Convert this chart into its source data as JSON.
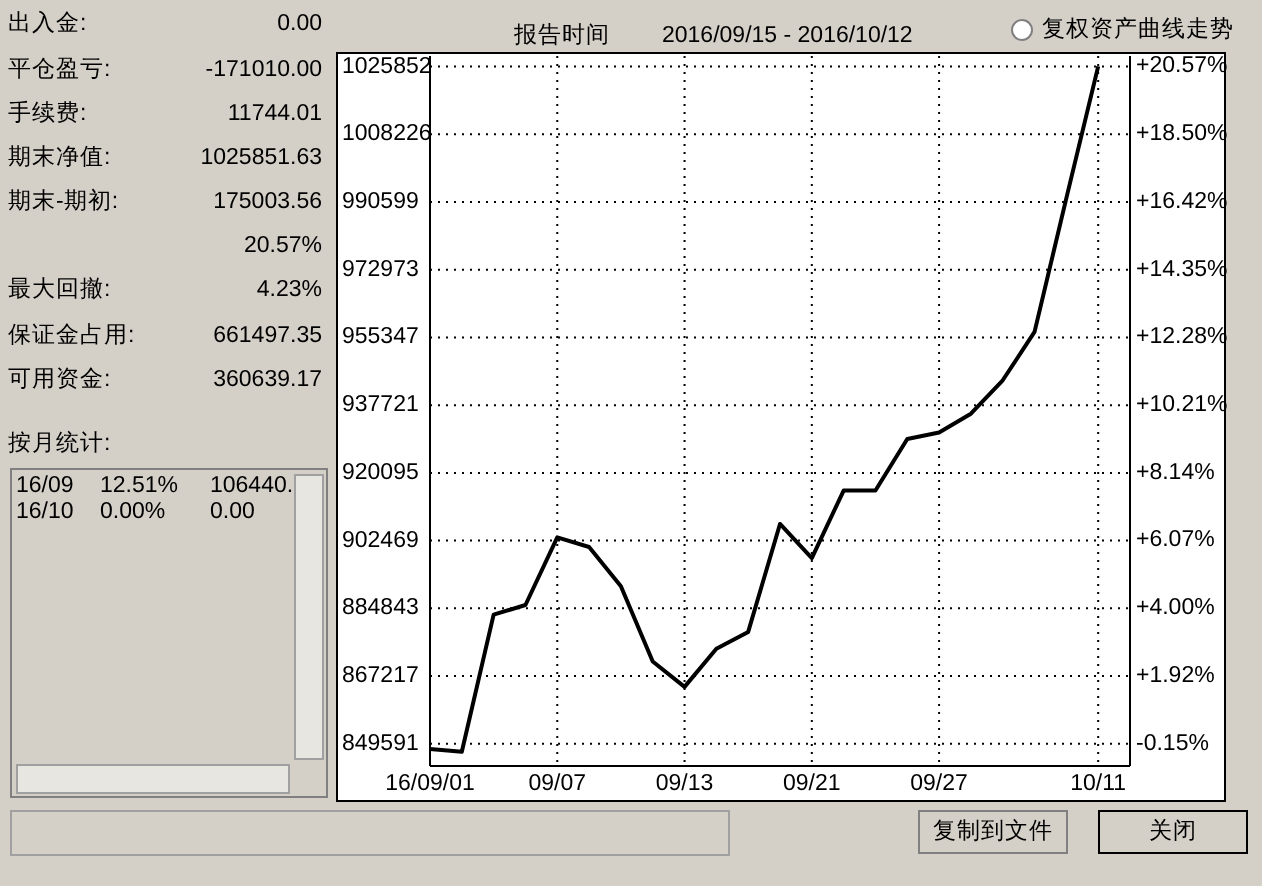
{
  "chart_data": {
    "type": "line",
    "categories": [
      "16/09/01",
      null,
      null,
      null,
      "09/07",
      null,
      null,
      null,
      "09/13",
      null,
      null,
      null,
      "09/21",
      null,
      null,
      null,
      "09/27",
      null,
      null,
      null,
      null,
      "10/11"
    ],
    "series": [
      {
        "color": "#000000",
        "values": [
          848200,
          847500,
          883200,
          885700,
          903300,
          900800,
          890600,
          871000,
          864400,
          874300,
          878700,
          906800,
          897900,
          915500,
          915500,
          928900,
          930600,
          935500,
          944200,
          956800,
          991600,
          1025900
        ]
      }
    ],
    "ylim": [
      843800,
      1028600
    ],
    "yticks": [
      849591,
      867217,
      884843,
      902469,
      920095,
      937721,
      955347,
      972973,
      990599,
      1008226,
      1025852
    ],
    "y2lim": [
      -0.83,
      20.89
    ],
    "y2ticks": [
      {
        "value": 20.57,
        "label": "+20.57%"
      },
      {
        "value": 18.5,
        "label": "+18.50%"
      },
      {
        "value": 16.42,
        "label": "+16.42%"
      },
      {
        "value": 14.35,
        "label": "+14.35%"
      },
      {
        "value": 12.28,
        "label": "+12.28%"
      },
      {
        "value": 10.21,
        "label": "+10.21%"
      },
      {
        "value": 8.14,
        "label": "+8.14%"
      },
      {
        "value": 6.07,
        "label": "+6.07%"
      },
      {
        "value": 4.0,
        "label": "+4.00%"
      },
      {
        "value": 1.92,
        "label": "+1.92%"
      },
      {
        "value": -0.15,
        "label": "-0.15%"
      }
    ],
    "grid": true,
    "annotations": [
      "出入金:",
      "0.00",
      "平仓盈亏:",
      "-171010.00",
      "手续费:",
      "11744.01",
      "期末净值:",
      "1025851.63",
      "期末-期初:",
      "175003.56",
      "20.57%",
      "最大回撤:",
      "4.23%",
      "保证金占用:",
      "661497.35",
      "可用资金:",
      "360639.17",
      "按月统计:",
      "16/09",
      "12.51%",
      "106440.",
      "16/10",
      "0.00%",
      "0.00",
      "报告时间",
      "2016/09/15 - 2016/10/12",
      "复权资产曲线走势",
      "复制到文件",
      "关闭"
    ]
  }
}
